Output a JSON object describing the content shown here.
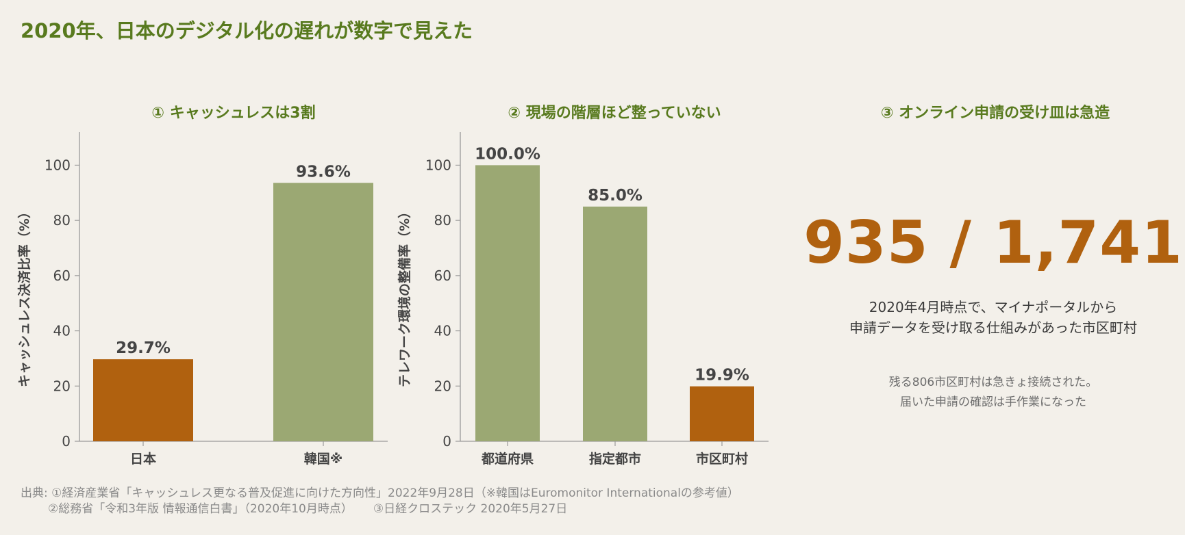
{
  "title": "2020年、日本のデジタル化の遅れが数字で見えた",
  "panels": {
    "p1_title": "① キャッシュレスは3割",
    "p2_title": "② 現場の階層ほど整っていない",
    "p3_title": "③ オンライン申請の受け皿は急造"
  },
  "chart_data": [
    {
      "type": "bar",
      "title": "① キャッシュレスは3割",
      "ylabel": "キャッシュレス決済比率（%）",
      "xlabel": "",
      "categories": [
        "日本",
        "韓国※"
      ],
      "values": [
        29.7,
        93.6
      ],
      "value_labels": [
        "29.7%",
        "93.6%"
      ],
      "colors": [
        "#b0610f",
        "#9ba873"
      ],
      "ylim": [
        0,
        112
      ],
      "yticks": [
        0,
        20,
        40,
        60,
        80,
        100
      ],
      "grid": false
    },
    {
      "type": "bar",
      "title": "② 現場の階層ほど整っていない",
      "ylabel": "テレワーク環境の整備率（%）",
      "xlabel": "",
      "categories": [
        "都道府県",
        "指定都市",
        "市区町村"
      ],
      "values": [
        100.0,
        85.0,
        19.9
      ],
      "value_labels": [
        "100.0%",
        "85.0%",
        "19.9%"
      ],
      "colors": [
        "#9ba873",
        "#9ba873",
        "#b0610f"
      ],
      "ylim": [
        0,
        112
      ],
      "yticks": [
        0,
        20,
        40,
        60,
        80,
        100
      ],
      "grid": false
    }
  ],
  "highlight": {
    "number": "935 / 1,741",
    "caption_line1": "2020年4月時点で、マイナポータルから",
    "caption_line2": "申請データを受け取る仕組みがあった市区町村",
    "note_line1": "残る806市区町村は急きょ接続された。",
    "note_line2": "届いた申請の確認は手作業になった",
    "color": "#b0610f"
  },
  "source": {
    "line1": "出典: ①経済産業省「キャッシュレス更なる普及促進に向けた方向性」2022年9月28日（※韓国はEuromonitor Internationalの参考値）",
    "line2a": "②総務省「令和3年版 情報通信白書」（2020年10月時点）",
    "line2b": "③日経クロステック 2020年5月27日"
  },
  "colors": {
    "accent_green": "#587a1e",
    "bar_orange": "#b0610f",
    "bar_green": "#9ba873",
    "background": "#f3f0ea"
  }
}
